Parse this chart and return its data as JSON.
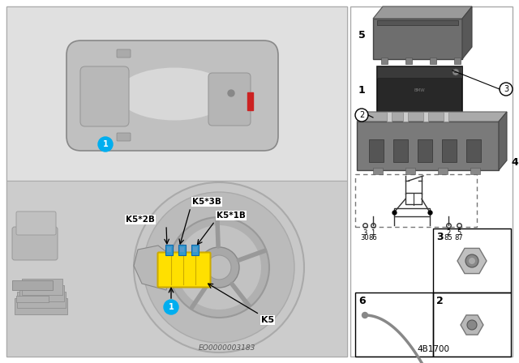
{
  "bg_color": "#ffffff",
  "panel_border": "#cccccc",
  "left_bg": "#d8d8d8",
  "right_bg": "#ffffff",
  "part_number": "4B1700",
  "eo_number": "EO0000003183",
  "cyan_color": "#00AEEF",
  "yellow_color": "#FFE000",
  "blue_color": "#3399CC",
  "car_body_color": "#c8c8c8",
  "car_roof_color": "#e2e2e2",
  "relay_dark": "#2a2a2a",
  "relay_mid": "#555555",
  "relay_light": "#888888",
  "socket_color": "#7a7a7a",
  "cover_color": "#6a6a6a",
  "labels": {
    "K5": "K5",
    "K5_1B": "K5*1B",
    "K5_2B": "K5*2B",
    "K5_3B": "K5*3B"
  },
  "pin_labels_top": [
    "3",
    "1",
    "2",
    "5"
  ],
  "pin_labels_bot": [
    "30",
    "86",
    "85",
    "87"
  ]
}
